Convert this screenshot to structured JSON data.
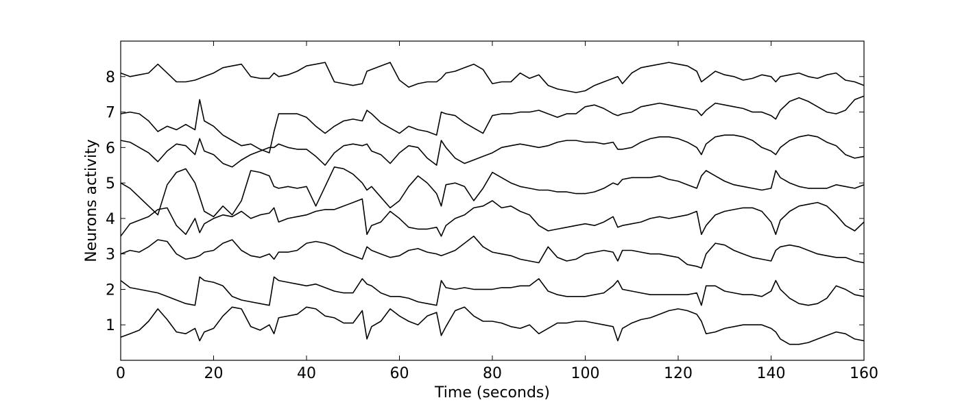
{
  "chart_data": {
    "type": "line",
    "xlabel": "Time (seconds)",
    "ylabel": "Neurons activity",
    "xlim": [
      0,
      160
    ],
    "ylim": [
      0,
      9
    ],
    "x_ticks": [
      0,
      20,
      40,
      60,
      80,
      100,
      120,
      140,
      160
    ],
    "y_ticks": [
      1,
      2,
      3,
      4,
      5,
      6,
      7,
      8
    ],
    "grid": false,
    "legend": "none",
    "line_color": "#000000",
    "x": [
      0,
      2,
      4,
      6,
      8,
      10,
      12,
      14,
      16,
      17,
      18,
      20,
      22,
      24,
      26,
      28,
      30,
      32,
      33,
      34,
      36,
      38,
      40,
      42,
      44,
      46,
      48,
      50,
      52,
      53,
      54,
      56,
      58,
      60,
      62,
      64,
      66,
      68,
      69,
      70,
      72,
      74,
      76,
      78,
      80,
      82,
      84,
      86,
      88,
      90,
      92,
      94,
      96,
      98,
      100,
      102,
      104,
      106,
      107,
      108,
      110,
      112,
      114,
      116,
      118,
      120,
      122,
      124,
      125,
      126,
      128,
      130,
      132,
      134,
      136,
      138,
      140,
      141,
      142,
      144,
      146,
      148,
      150,
      152,
      154,
      156,
      158,
      160
    ],
    "series": [
      {
        "values": [
          0.65,
          0.75,
          0.85,
          1.1,
          1.45,
          1.15,
          0.8,
          0.75,
          0.9,
          0.55,
          0.8,
          0.9,
          1.25,
          1.5,
          1.45,
          0.95,
          0.85,
          1.0,
          0.75,
          1.2,
          1.25,
          1.3,
          1.5,
          1.45,
          1.25,
          1.2,
          1.05,
          1.05,
          1.4,
          0.6,
          0.95,
          1.1,
          1.45,
          1.25,
          1.1,
          1.0,
          1.25,
          1.35,
          0.7,
          0.95,
          1.4,
          1.5,
          1.25,
          1.1,
          1.1,
          1.05,
          0.95,
          0.9,
          1.0,
          0.75,
          0.9,
          1.05,
          1.05,
          1.1,
          1.1,
          1.05,
          1.0,
          0.95,
          0.55,
          0.9,
          1.05,
          1.15,
          1.2,
          1.3,
          1.4,
          1.45,
          1.4,
          1.3,
          1.1,
          0.75,
          0.8,
          0.9,
          0.95,
          1.0,
          1.0,
          1.0,
          0.9,
          0.8,
          0.6,
          0.45,
          0.45,
          0.5,
          0.6,
          0.7,
          0.8,
          0.75,
          0.6,
          0.55
        ]
      },
      {
        "values": [
          2.25,
          2.05,
          2.0,
          1.95,
          1.9,
          1.8,
          1.7,
          1.6,
          1.55,
          2.35,
          2.25,
          2.2,
          2.1,
          1.8,
          1.7,
          1.65,
          1.6,
          1.55,
          2.35,
          2.25,
          2.2,
          2.15,
          2.1,
          2.15,
          2.05,
          1.95,
          1.9,
          1.9,
          2.3,
          2.15,
          2.1,
          1.9,
          1.8,
          1.8,
          1.75,
          1.65,
          1.6,
          1.55,
          2.25,
          2.05,
          2.0,
          2.05,
          2.0,
          2.0,
          2.0,
          2.05,
          2.05,
          2.1,
          2.1,
          2.3,
          1.95,
          1.85,
          1.8,
          1.8,
          1.8,
          1.85,
          1.9,
          2.1,
          2.25,
          2.0,
          1.95,
          1.9,
          1.85,
          1.85,
          1.85,
          1.85,
          1.85,
          1.9,
          1.55,
          2.1,
          2.1,
          1.95,
          1.9,
          1.85,
          1.85,
          1.8,
          1.95,
          2.25,
          2.0,
          1.75,
          1.6,
          1.55,
          1.6,
          1.75,
          2.1,
          2.0,
          1.85,
          1.8
        ]
      },
      {
        "values": [
          3.0,
          3.1,
          3.05,
          3.2,
          3.4,
          3.35,
          3.0,
          2.85,
          2.9,
          2.95,
          3.05,
          3.1,
          3.3,
          3.4,
          3.1,
          2.95,
          2.9,
          3.0,
          2.85,
          3.05,
          3.05,
          3.1,
          3.3,
          3.35,
          3.3,
          3.2,
          3.05,
          2.95,
          2.85,
          3.2,
          3.1,
          3.0,
          2.9,
          2.95,
          3.1,
          3.15,
          3.05,
          3.0,
          2.95,
          3.0,
          3.1,
          3.3,
          3.5,
          3.2,
          3.05,
          3.0,
          2.95,
          2.85,
          2.8,
          2.75,
          3.2,
          2.9,
          2.8,
          2.85,
          3.0,
          3.05,
          3.1,
          3.05,
          2.8,
          3.1,
          3.1,
          3.05,
          3.0,
          3.0,
          2.95,
          2.9,
          2.7,
          2.65,
          2.6,
          3.0,
          3.3,
          3.25,
          3.1,
          3.0,
          2.9,
          2.85,
          2.8,
          3.1,
          3.2,
          3.25,
          3.2,
          3.1,
          3.0,
          2.95,
          2.9,
          2.9,
          2.8,
          2.75
        ]
      },
      {
        "values": [
          3.5,
          3.85,
          3.95,
          4.05,
          4.25,
          4.3,
          3.8,
          3.55,
          4.0,
          3.6,
          3.85,
          4.0,
          4.1,
          4.05,
          4.2,
          4.0,
          4.1,
          4.15,
          4.3,
          3.9,
          4.0,
          4.05,
          4.1,
          4.2,
          4.25,
          4.25,
          4.35,
          4.45,
          4.55,
          3.55,
          3.8,
          3.9,
          4.2,
          4.0,
          3.75,
          3.7,
          3.7,
          3.75,
          3.5,
          3.8,
          4.0,
          4.1,
          4.3,
          4.35,
          4.5,
          4.3,
          4.35,
          4.2,
          4.1,
          3.8,
          3.65,
          3.7,
          3.75,
          3.8,
          3.85,
          3.8,
          3.9,
          4.05,
          3.75,
          3.8,
          3.85,
          3.9,
          4.0,
          4.05,
          4.0,
          4.05,
          4.1,
          4.2,
          3.55,
          3.8,
          4.1,
          4.2,
          4.25,
          4.3,
          4.3,
          4.2,
          3.9,
          3.55,
          3.95,
          4.2,
          4.35,
          4.4,
          4.45,
          4.35,
          4.1,
          3.8,
          3.65,
          3.9
        ]
      },
      {
        "values": [
          5.0,
          4.85,
          4.6,
          4.35,
          4.1,
          4.95,
          5.3,
          5.4,
          5.0,
          4.6,
          4.2,
          4.05,
          4.35,
          4.1,
          4.5,
          5.35,
          5.3,
          5.2,
          4.9,
          4.85,
          4.9,
          4.85,
          4.9,
          4.35,
          4.9,
          5.45,
          5.4,
          5.25,
          5.0,
          4.8,
          4.9,
          4.6,
          4.3,
          4.5,
          4.9,
          5.2,
          5.0,
          4.7,
          4.35,
          4.95,
          5.0,
          4.9,
          4.5,
          4.85,
          5.3,
          5.15,
          5.0,
          4.9,
          4.85,
          4.8,
          4.8,
          4.75,
          4.75,
          4.7,
          4.7,
          4.75,
          4.85,
          5.0,
          4.95,
          5.1,
          5.15,
          5.15,
          5.15,
          5.2,
          5.1,
          5.05,
          4.95,
          4.85,
          5.2,
          5.35,
          5.2,
          5.05,
          4.95,
          4.9,
          4.85,
          4.8,
          4.85,
          5.35,
          5.15,
          5.0,
          4.9,
          4.85,
          4.85,
          4.85,
          4.95,
          4.9,
          4.85,
          4.95
        ]
      },
      {
        "values": [
          6.2,
          6.15,
          6.0,
          5.85,
          5.6,
          5.9,
          6.1,
          6.05,
          5.8,
          6.25,
          5.9,
          5.8,
          5.55,
          5.45,
          5.65,
          5.8,
          5.9,
          6.0,
          6.0,
          6.1,
          6.0,
          5.95,
          5.95,
          5.75,
          5.5,
          5.85,
          6.05,
          6.1,
          6.05,
          6.1,
          5.9,
          5.8,
          5.55,
          5.85,
          6.05,
          6.0,
          5.7,
          5.5,
          6.2,
          6.0,
          5.7,
          5.55,
          5.65,
          5.75,
          5.85,
          6.0,
          6.05,
          6.1,
          6.05,
          6.0,
          6.05,
          6.15,
          6.2,
          6.2,
          6.15,
          6.15,
          6.1,
          6.15,
          5.95,
          5.95,
          6.0,
          6.15,
          6.25,
          6.3,
          6.3,
          6.25,
          6.15,
          6.0,
          5.8,
          6.1,
          6.3,
          6.35,
          6.35,
          6.3,
          6.2,
          6.0,
          5.9,
          5.8,
          6.0,
          6.2,
          6.3,
          6.35,
          6.3,
          6.15,
          6.05,
          5.8,
          5.7,
          5.75
        ]
      },
      {
        "values": [
          6.95,
          7.0,
          6.95,
          6.75,
          6.45,
          6.6,
          6.5,
          6.65,
          6.5,
          7.35,
          6.75,
          6.6,
          6.35,
          6.2,
          6.05,
          6.1,
          5.95,
          5.85,
          6.45,
          6.95,
          6.95,
          6.95,
          6.85,
          6.6,
          6.4,
          6.6,
          6.75,
          6.8,
          6.75,
          7.05,
          6.95,
          6.7,
          6.55,
          6.4,
          6.6,
          6.5,
          6.45,
          6.35,
          7.0,
          6.95,
          6.9,
          6.7,
          6.55,
          6.4,
          6.9,
          6.95,
          6.95,
          7.0,
          7.0,
          7.05,
          6.95,
          6.85,
          6.95,
          6.95,
          7.15,
          7.2,
          7.1,
          6.95,
          6.9,
          6.95,
          7.0,
          7.15,
          7.2,
          7.25,
          7.2,
          7.15,
          7.1,
          7.05,
          6.9,
          7.05,
          7.25,
          7.2,
          7.15,
          7.1,
          7.0,
          7.0,
          6.9,
          6.8,
          7.05,
          7.3,
          7.4,
          7.3,
          7.15,
          7.0,
          6.95,
          7.05,
          7.35,
          7.45
        ]
      },
      {
        "values": [
          8.1,
          8.0,
          8.05,
          8.1,
          8.35,
          8.1,
          7.85,
          7.85,
          7.9,
          7.95,
          8.0,
          8.1,
          8.25,
          8.3,
          8.35,
          8.0,
          7.95,
          7.95,
          8.1,
          8.0,
          8.05,
          8.15,
          8.3,
          8.35,
          8.4,
          7.85,
          7.8,
          7.75,
          7.8,
          8.15,
          8.2,
          8.3,
          8.4,
          7.9,
          7.7,
          7.8,
          7.85,
          7.85,
          7.95,
          8.1,
          8.15,
          8.25,
          8.35,
          8.2,
          7.8,
          7.85,
          7.85,
          8.1,
          7.95,
          8.05,
          7.75,
          7.65,
          7.6,
          7.55,
          7.6,
          7.75,
          7.85,
          7.95,
          8.0,
          7.8,
          8.1,
          8.25,
          8.3,
          8.35,
          8.4,
          8.35,
          8.3,
          8.15,
          7.85,
          7.95,
          8.15,
          8.05,
          8.0,
          7.9,
          7.95,
          8.05,
          8.0,
          7.85,
          8.0,
          8.05,
          8.1,
          8.0,
          7.95,
          8.05,
          8.1,
          7.9,
          7.85,
          7.75
        ]
      }
    ]
  }
}
